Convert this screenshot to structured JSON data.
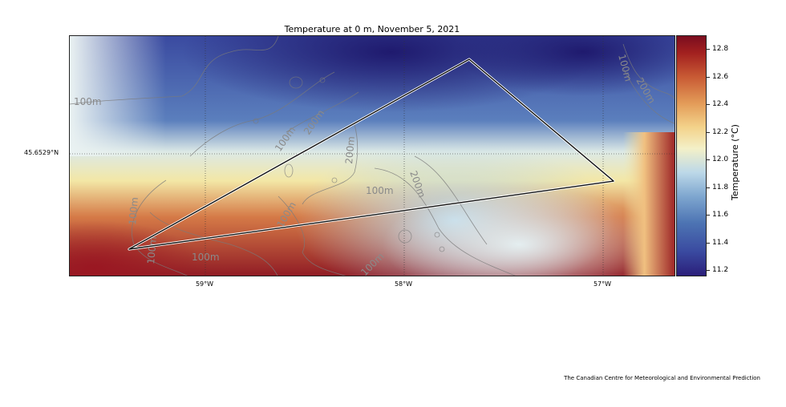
{
  "title": "Temperature  at 0 m, November 5, 2021",
  "colorbar": {
    "label": "Temperature (°C)",
    "ticks": [
      "12.8",
      "12.6",
      "12.4",
      "12.2",
      "12.0",
      "11.8",
      "11.6",
      "11.4",
      "11.2"
    ]
  },
  "axes": {
    "longitude_labels": [
      "59°W",
      "58°W",
      "57°W"
    ],
    "latitude_label": "45.6529°N"
  },
  "contours": {
    "labels": [
      "100m",
      "200m",
      "100m",
      "200m",
      "100m",
      "200m",
      "100m",
      "100m",
      "200m",
      "100m",
      "100m",
      "100m",
      "100m",
      "100m"
    ]
  },
  "credit": "The Canadian Centre for Meteorological and Environmental Prediction",
  "colors": {
    "cold": "#2b1f7a",
    "neutral": "#f3f0c8",
    "warm": "#7a0d1f",
    "polygon": "#111111"
  }
}
